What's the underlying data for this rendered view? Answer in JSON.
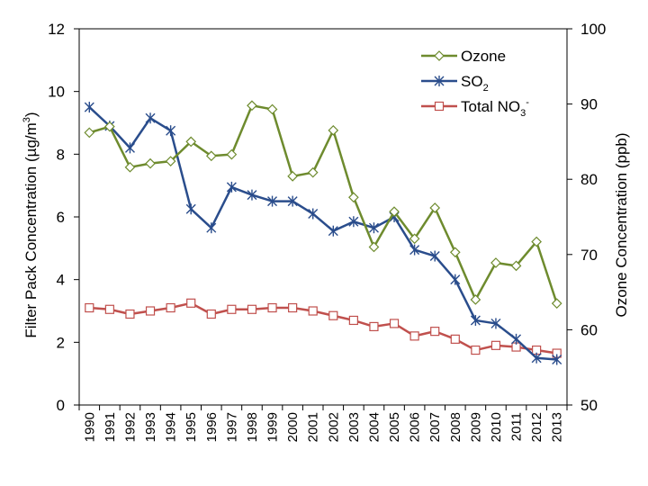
{
  "chart_data": {
    "type": "line",
    "title": "",
    "xlabel": "",
    "categories": [
      "1990",
      "1991",
      "1992",
      "1993",
      "1994",
      "1995",
      "1996",
      "1997",
      "1998",
      "1999",
      "2000",
      "2001",
      "2002",
      "2003",
      "2004",
      "2005",
      "2006",
      "2007",
      "2008",
      "2009",
      "2010",
      "2011",
      "2012",
      "2013"
    ],
    "y_left": {
      "label_prefix": "Filter Pack Concentration (µg/m",
      "label_sup": "3",
      "label_suffix": ")",
      "range": [
        0,
        12
      ],
      "ticks": [
        "0",
        "2",
        "4",
        "6",
        "8",
        "10",
        "12"
      ]
    },
    "y_right": {
      "label": "Ozone Concentration (ppb)",
      "range": [
        50,
        100
      ],
      "ticks": [
        "50",
        "60",
        "70",
        "80",
        "90",
        "100"
      ]
    },
    "series": [
      {
        "name": "Ozone",
        "axis": "right",
        "color": "#6e8b2e",
        "marker": "diamond",
        "values": [
          86.2,
          87.0,
          81.6,
          82.1,
          82.4,
          85.0,
          83.1,
          83.3,
          89.8,
          89.3,
          80.4,
          80.9,
          86.5,
          77.6,
          71.0,
          75.7,
          72.1,
          76.2,
          70.3,
          64.0,
          68.9,
          68.5,
          71.7,
          63.5
        ]
      },
      {
        "name": "SO",
        "name_sub": "2",
        "axis": "left",
        "color": "#2a4d8c",
        "marker": "asterisk",
        "values": [
          9.5,
          8.9,
          8.2,
          9.15,
          8.75,
          6.25,
          5.65,
          6.95,
          6.7,
          6.5,
          6.5,
          6.1,
          5.55,
          5.85,
          5.65,
          6.0,
          4.95,
          4.75,
          4.0,
          2.7,
          2.6,
          2.1,
          1.5,
          1.45
        ]
      },
      {
        "name": "Total NO",
        "name_sub": "3",
        "name_sup": "-",
        "axis": "left",
        "color": "#c0504d",
        "marker": "square",
        "values": [
          3.1,
          3.05,
          2.9,
          3.0,
          3.1,
          3.25,
          2.9,
          3.05,
          3.05,
          3.1,
          3.1,
          3.0,
          2.85,
          2.7,
          2.5,
          2.6,
          2.2,
          2.35,
          2.1,
          1.75,
          1.9,
          1.85,
          1.75,
          1.65
        ]
      }
    ],
    "legend_position": "top-right",
    "grid": false
  }
}
